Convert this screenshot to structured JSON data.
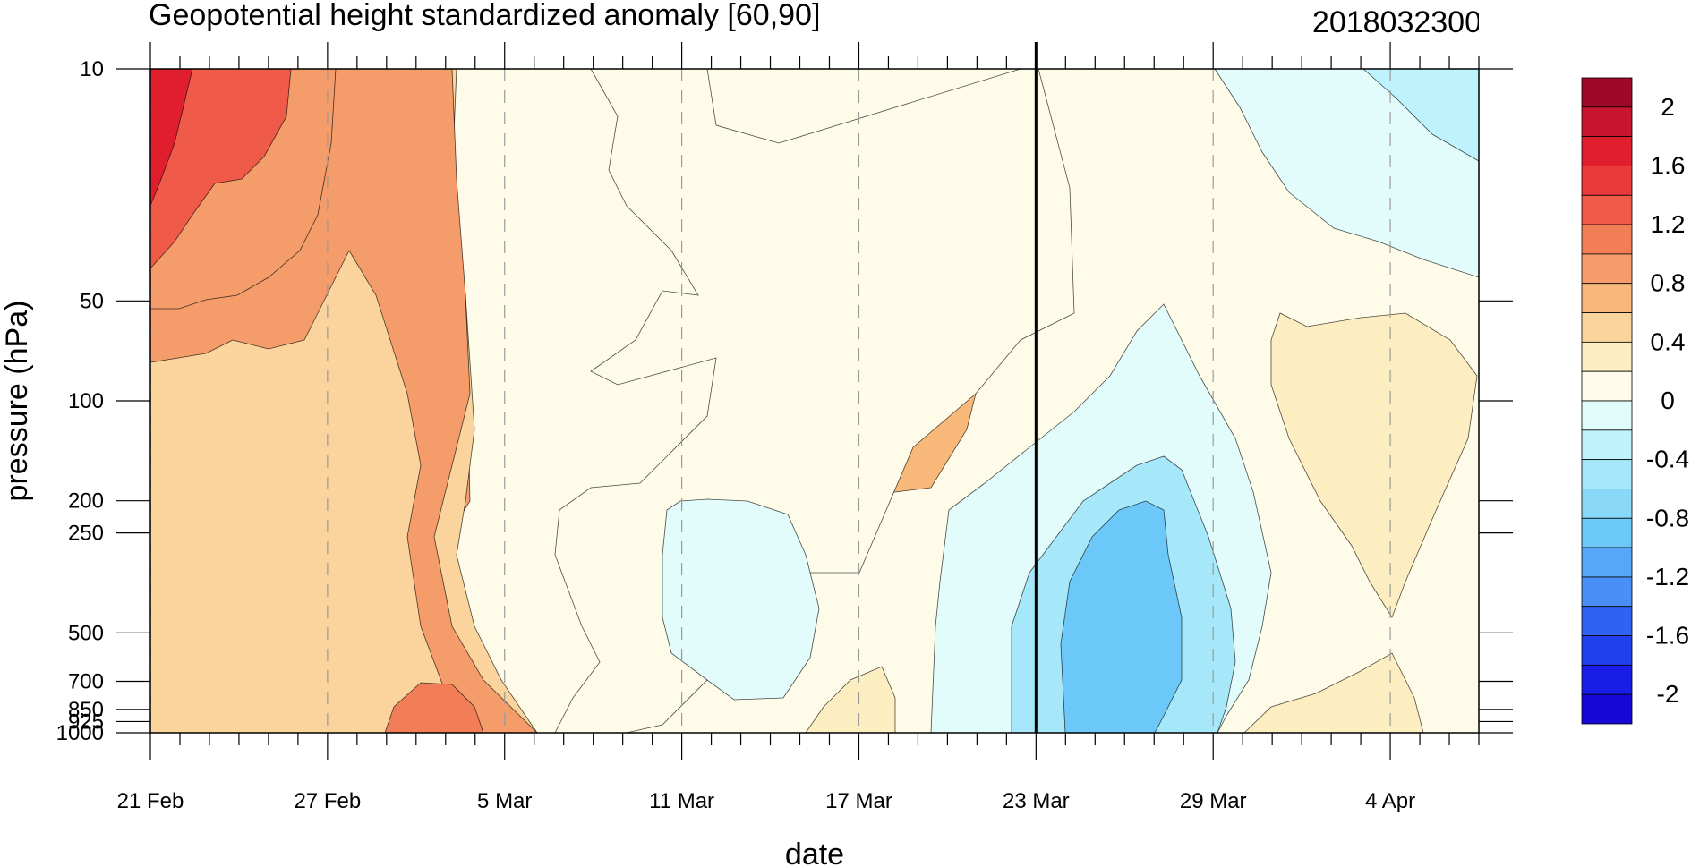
{
  "chart_data": {
    "type": "contour",
    "title": "Geopotential height standardized anomaly [60,90]",
    "date_label": "2018032300",
    "xlabel": "date",
    "ylabel": "pressure (hPa)",
    "x_ticks": [
      "21 Feb",
      "27 Feb",
      "5 Mar",
      "11 Mar",
      "17 Mar",
      "23 Mar",
      "29 Mar",
      "4 Apr"
    ],
    "y_ticks": [
      "10",
      "50",
      "100",
      "200",
      "250",
      "500",
      "700",
      "850",
      "925",
      "1000"
    ],
    "y_scale": "log",
    "y_range": [
      1000,
      10
    ],
    "x_range": [
      "21 Feb",
      "8 Apr"
    ],
    "current_date_marker": "23 Mar",
    "colorbar": {
      "labels": [
        "2",
        "1.6",
        "1.2",
        "0.8",
        "0.4",
        "0",
        "-0.4",
        "-0.8",
        "-1.2",
        "-1.6",
        "-2"
      ],
      "levels": [
        -2.2,
        -2.0,
        -1.8,
        -1.6,
        -1.4,
        -1.2,
        -1.0,
        -0.8,
        -0.6,
        -0.4,
        -0.2,
        0,
        0.2,
        0.4,
        0.6,
        0.8,
        1.0,
        1.2,
        1.4,
        1.6,
        1.8,
        2.0,
        2.2
      ],
      "colors": [
        "#1608d8",
        "#1a1ce8",
        "#2040ee",
        "#2e62f2",
        "#4a8ef8",
        "#56a6fa",
        "#6cc8f8",
        "#8ad8f8",
        "#a6e8fa",
        "#bef2fc",
        "#e2fcfc",
        "#fefce8",
        "#fceec0",
        "#fad49c",
        "#f8b87a",
        "#f49c6a",
        "#f27e58",
        "#f05a48",
        "#ec3a3a",
        "#e01e2e",
        "#c81430",
        "#a00828"
      ]
    },
    "regions": [
      {
        "name": "upper-left-warm-0.4",
        "value": 0.4
      },
      {
        "name": "upper-left-warm-0.8",
        "value": 0.8
      },
      {
        "name": "upper-left-warm-1.2",
        "value": 1.2
      },
      {
        "name": "upper-left-warm-1.6",
        "value": 1.6
      },
      {
        "name": "late-feb-lower-0.8",
        "value": 0.8
      },
      {
        "name": "early-mar-surface-max",
        "value": 1.0
      },
      {
        "name": "mid-mar-neutral",
        "value": 0.1
      },
      {
        "name": "mid-mar-negative",
        "value": -0.1
      },
      {
        "name": "mid-mar-stratos-max",
        "value": 0.6
      },
      {
        "name": "late-mar-negative-outer",
        "value": -0.2
      },
      {
        "name": "late-mar-negative-mid",
        "value": -0.5
      },
      {
        "name": "late-mar-negative-core",
        "value": -0.9
      },
      {
        "name": "april-upper-negative",
        "value": -0.2
      },
      {
        "name": "april-upper-negative-core",
        "value": -0.4
      },
      {
        "name": "april-mid-positive",
        "value": 0.3
      }
    ]
  }
}
